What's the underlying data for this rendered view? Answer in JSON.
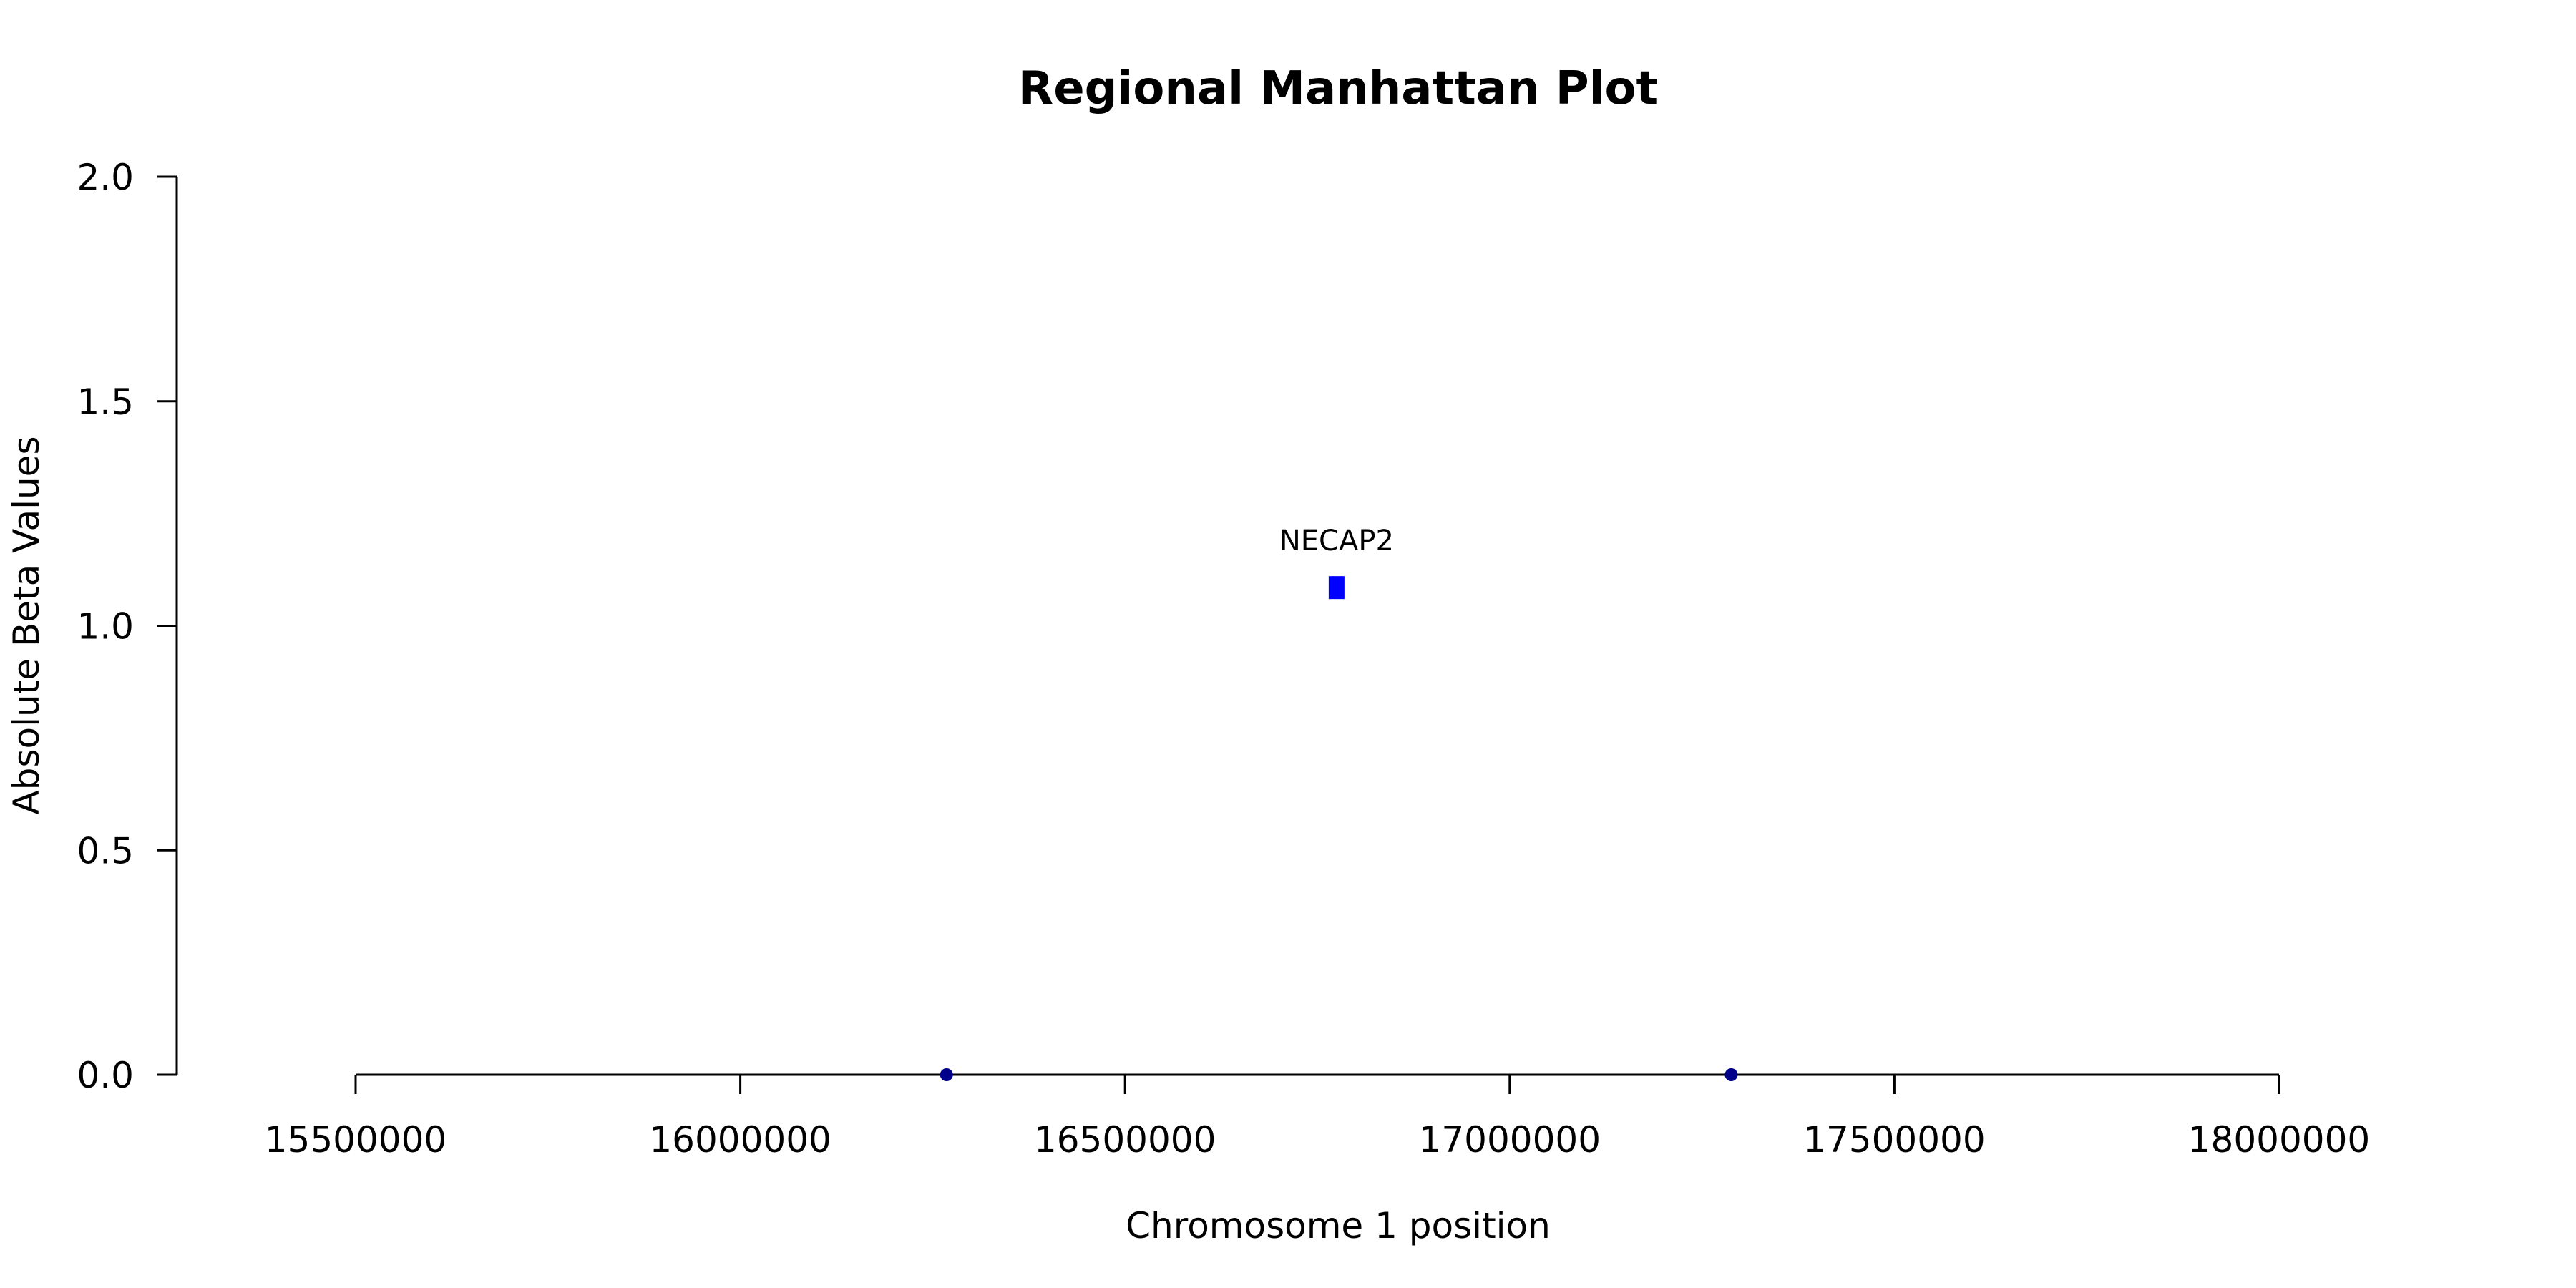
{
  "chart_data": {
    "type": "scatter",
    "title": "Regional Manhattan Plot",
    "xlabel": "Chromosome 1 position",
    "ylabel": "Absolute Beta Values",
    "xlim": [
      15500000,
      18000000
    ],
    "ylim": [
      0,
      2
    ],
    "x_ticks": [
      "15500000",
      "16000000",
      "16500000",
      "17000000",
      "17500000",
      "18000000"
    ],
    "y_ticks": [
      "0.0",
      "0.5",
      "1.0",
      "1.5",
      "2.0"
    ],
    "grid": false,
    "points": [
      {
        "x": 16268000,
        "y": 0.0,
        "color": "#00008b",
        "shape": "circle"
      },
      {
        "x": 16775000,
        "y": 1.085,
        "color": "#0000ff",
        "shape": "square",
        "label": "NECAP2"
      },
      {
        "x": 17288000,
        "y": 0.0,
        "color": "#00008b",
        "shape": "circle"
      }
    ]
  }
}
